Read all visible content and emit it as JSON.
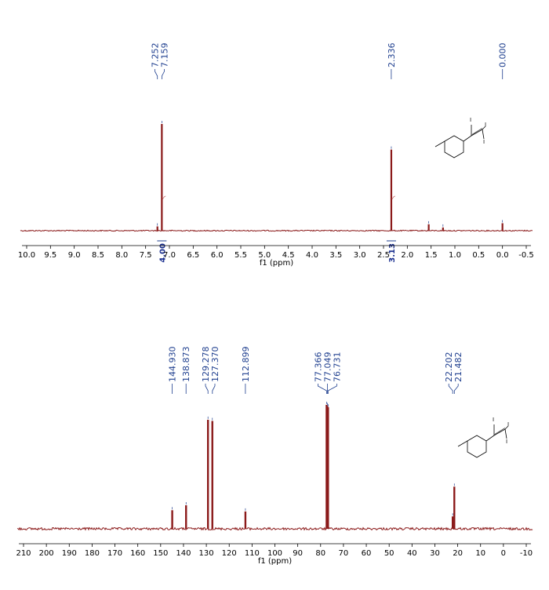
{
  "colors": {
    "spectrum": "#8b1a1a",
    "peak_label": "#1f3f8f",
    "integral": "#1a2f8f"
  },
  "chart_data": [
    {
      "type": "line",
      "nucleus": "1H",
      "xlabel": "f1 (ppm)",
      "ylabel": "",
      "xlim": [
        10.0,
        -0.5
      ],
      "x_reversed": true,
      "x_ticks": [
        "10.0",
        "9.5",
        "9.0",
        "8.5",
        "8.0",
        "7.5",
        "7.0",
        "6.5",
        "6.0",
        "5.5",
        "5.0",
        "4.5",
        "4.0",
        "3.5",
        "3.0",
        "2.5",
        "2.0",
        "1.5",
        "1.0",
        "0.5",
        "0.0",
        "-0.5"
      ],
      "peak_labels": [
        "7.252",
        "7.159",
        "2.336",
        "0.000"
      ],
      "peaks": [
        {
          "ppm": 7.252,
          "height": 0.04
        },
        {
          "ppm": 7.159,
          "height": 1.0
        },
        {
          "ppm": 2.336,
          "height": 0.76
        },
        {
          "ppm": 1.55,
          "height": 0.06
        },
        {
          "ppm": 1.25,
          "height": 0.03
        },
        {
          "ppm": 0.0,
          "height": 0.07
        }
      ],
      "integrals": [
        {
          "ppm": 7.159,
          "value": "4.00"
        },
        {
          "ppm": 2.336,
          "value": "3.13"
        }
      ],
      "structure_labels": [
        "I",
        "I",
        "I"
      ]
    },
    {
      "type": "line",
      "nucleus": "13C",
      "xlabel": "f1 (ppm)",
      "ylabel": "",
      "xlim": [
        210,
        -10
      ],
      "x_reversed": true,
      "x_ticks": [
        "210",
        "200",
        "190",
        "180",
        "170",
        "160",
        "150",
        "140",
        "130",
        "120",
        "110",
        "100",
        "90",
        "80",
        "70",
        "60",
        "50",
        "40",
        "30",
        "20",
        "10",
        "0",
        "-10"
      ],
      "peak_labels": [
        "144.930",
        "138.873",
        "129.278",
        "127.370",
        "112.899",
        "77.366",
        "77.049",
        "76.731",
        "22.202",
        "21.482"
      ],
      "peaks": [
        {
          "ppm": 144.93,
          "height": 0.15
        },
        {
          "ppm": 138.873,
          "height": 0.19
        },
        {
          "ppm": 129.278,
          "height": 0.88
        },
        {
          "ppm": 127.37,
          "height": 0.87
        },
        {
          "ppm": 112.899,
          "height": 0.14
        },
        {
          "ppm": 77.366,
          "height": 1.0
        },
        {
          "ppm": 77.049,
          "height": 0.99
        },
        {
          "ppm": 76.731,
          "height": 0.98
        },
        {
          "ppm": 22.202,
          "height": 0.1
        },
        {
          "ppm": 21.482,
          "height": 0.34
        }
      ],
      "integrals": [],
      "structure_labels": [
        "I",
        "I",
        "I"
      ]
    }
  ]
}
